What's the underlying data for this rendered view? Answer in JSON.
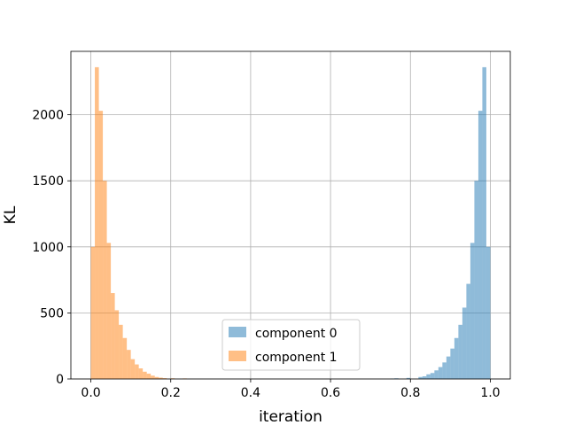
{
  "chart_data": {
    "type": "bar",
    "xlabel": "iteration",
    "ylabel": "KL",
    "xlim": [
      -0.05,
      1.05
    ],
    "ylim": [
      0,
      2480
    ],
    "xticks": [
      0.0,
      0.2,
      0.4,
      0.6,
      0.8,
      1.0
    ],
    "xtick_labels": [
      "0.0",
      "0.2",
      "0.4",
      "0.6",
      "0.8",
      "1.0"
    ],
    "yticks": [
      0,
      500,
      1000,
      1500,
      2000
    ],
    "ytick_labels": [
      "0",
      "500",
      "1000",
      "1500",
      "2000"
    ],
    "grid": true,
    "legend_position": "lower-center",
    "bin_width": 0.01,
    "series": [
      {
        "name": "component 0",
        "color": "#1f77b4",
        "alpha": 0.5,
        "bin_starts": [
          0.75,
          0.76,
          0.79,
          0.82,
          0.83,
          0.84,
          0.85,
          0.86,
          0.87,
          0.88,
          0.89,
          0.9,
          0.91,
          0.92,
          0.93,
          0.94,
          0.95,
          0.96,
          0.97,
          0.98,
          0.99
        ],
        "values": [
          3,
          5,
          8,
          15,
          20,
          35,
          45,
          65,
          90,
          125,
          170,
          230,
          310,
          410,
          540,
          720,
          1030,
          1500,
          2030,
          2360,
          1000
        ]
      },
      {
        "name": "component 1",
        "color": "#ff7f0e",
        "alpha": 0.5,
        "bin_starts": [
          0.0,
          0.01,
          0.02,
          0.03,
          0.04,
          0.05,
          0.06,
          0.07,
          0.08,
          0.09,
          0.1,
          0.11,
          0.12,
          0.13,
          0.14,
          0.15,
          0.16,
          0.17,
          0.18,
          0.2,
          0.23
        ],
        "values": [
          1000,
          2360,
          2030,
          1500,
          1030,
          650,
          520,
          410,
          310,
          220,
          150,
          110,
          80,
          55,
          40,
          25,
          15,
          10,
          6,
          5,
          4
        ]
      }
    ]
  }
}
